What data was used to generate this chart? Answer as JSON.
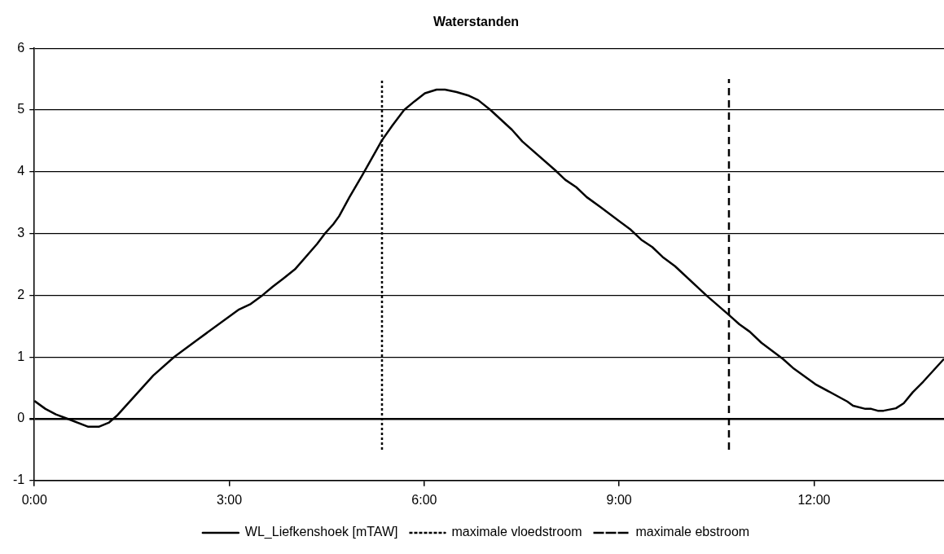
{
  "chart_data": {
    "type": "line",
    "title": "Waterstanden",
    "xlim": [
      0,
      14
    ],
    "xticks": [
      {
        "value": 0,
        "label": "0:00"
      },
      {
        "value": 3,
        "label": "3:00"
      },
      {
        "value": 6,
        "label": "6:00"
      },
      {
        "value": 9,
        "label": "9:00"
      },
      {
        "value": 12,
        "label": "12:00"
      }
    ],
    "ylim": [
      -1,
      6
    ],
    "yticks": [
      -1,
      0,
      1,
      2,
      3,
      4,
      5,
      6
    ],
    "grid": "y",
    "legend": "bottom",
    "marker": "none",
    "series": [
      {
        "name": "WL_Liefkenshoek [mTAW]",
        "color": "#000000",
        "line_style": "solid",
        "x": [
          0,
          0.17,
          0.33,
          0.51,
          0.83,
          0.99,
          1.15,
          1.28,
          1.83,
          2.15,
          2.51,
          3.15,
          3.33,
          3.51,
          3.67,
          3.83,
          4.01,
          4.35,
          4.48,
          4.6,
          4.69,
          4.85,
          5.05,
          5.35,
          5.51,
          5.69,
          5.85,
          6.01,
          6.19,
          6.32,
          6.5,
          6.69,
          6.83,
          7.02,
          7.35,
          7.51,
          8.01,
          8.17,
          8.34,
          8.5,
          8.71,
          9.18,
          9.34,
          9.51,
          9.67,
          9.86,
          10.35,
          10.69,
          10.85,
          11.01,
          11.19,
          11.52,
          11.69,
          12.02,
          12.51,
          12.6,
          12.79,
          12.88,
          12.98,
          13.07,
          13.26,
          13.38,
          13.52,
          13.68,
          14
        ],
        "values": [
          0.29,
          0.16,
          0.07,
          0,
          -0.13,
          -0.13,
          -0.06,
          0.06,
          0.7,
          1,
          1.28,
          1.77,
          1.86,
          2,
          2.14,
          2.27,
          2.42,
          2.83,
          3.01,
          3.15,
          3.28,
          3.59,
          3.95,
          4.51,
          4.75,
          5,
          5.14,
          5.27,
          5.33,
          5.33,
          5.29,
          5.23,
          5.16,
          5,
          4.68,
          4.49,
          4.03,
          3.87,
          3.75,
          3.59,
          3.43,
          3.06,
          2.9,
          2.78,
          2.62,
          2.47,
          1.99,
          1.68,
          1.53,
          1.41,
          1.23,
          0.97,
          0.81,
          0.56,
          0.28,
          0.21,
          0.16,
          0.16,
          0.13,
          0.13,
          0.17,
          0.25,
          0.43,
          0.6,
          0.97
        ]
      },
      {
        "name": "maximale vloedstroom",
        "color": "#000000",
        "line_style": "dotted",
        "x": [
          5.35,
          5.35
        ],
        "values": [
          -0.5,
          5.5
        ]
      },
      {
        "name": "maximale ebstroom",
        "color": "#000000",
        "line_style": "dashed",
        "x": [
          10.69,
          10.69
        ],
        "values": [
          -0.5,
          5.5
        ]
      }
    ]
  }
}
